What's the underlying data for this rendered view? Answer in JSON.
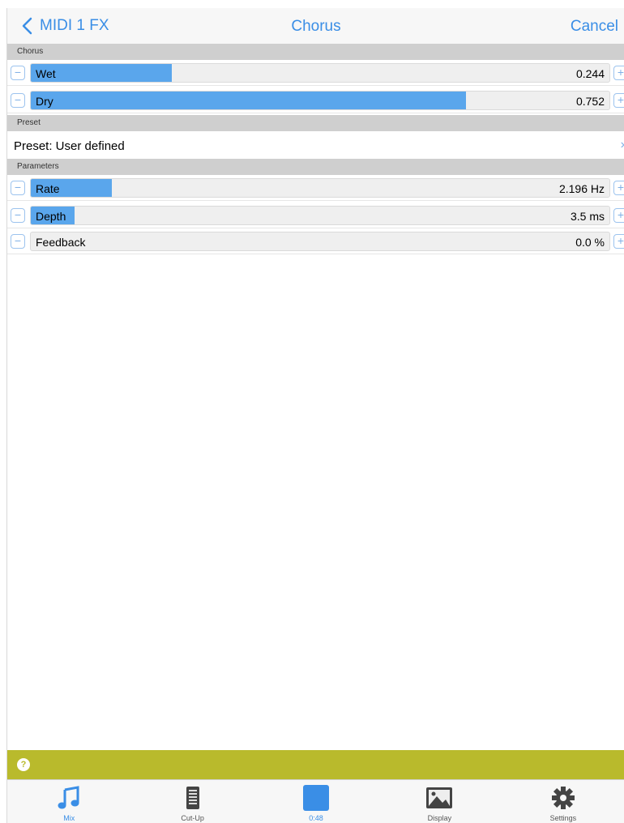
{
  "nav": {
    "back_label": "MIDI 1 FX",
    "title": "Chorus",
    "cancel_label": "Cancel"
  },
  "sections": {
    "chorus": "Chorus",
    "preset": "Preset",
    "parameters": "Parameters"
  },
  "chorus_params": [
    {
      "label": "Wet",
      "value": "0.244",
      "fill": 0.244
    },
    {
      "label": "Dry",
      "value": "0.752",
      "fill": 0.752
    }
  ],
  "preset": {
    "label": "Preset: User defined"
  },
  "parameters": [
    {
      "label": "Rate",
      "value": "2.196 Hz",
      "fill": 0.14
    },
    {
      "label": "Depth",
      "value": "3.5 ms",
      "fill": 0.075
    },
    {
      "label": "Feedback",
      "value": "0.0 %",
      "fill": 0.0
    }
  ],
  "tabs": [
    {
      "label": "Mix",
      "icon": "music-note-icon"
    },
    {
      "label": "Cut-Up",
      "icon": "document-icon"
    },
    {
      "label": "0:48",
      "icon": "stop-square-icon"
    },
    {
      "label": "Display",
      "icon": "image-icon"
    },
    {
      "label": "Settings",
      "icon": "gear-icon"
    }
  ],
  "colors": {
    "accent": "#3a8ee6",
    "fill": "#5aa6ec",
    "status_bar": "#b9ba2c",
    "section_header": "#cfcfcf"
  }
}
